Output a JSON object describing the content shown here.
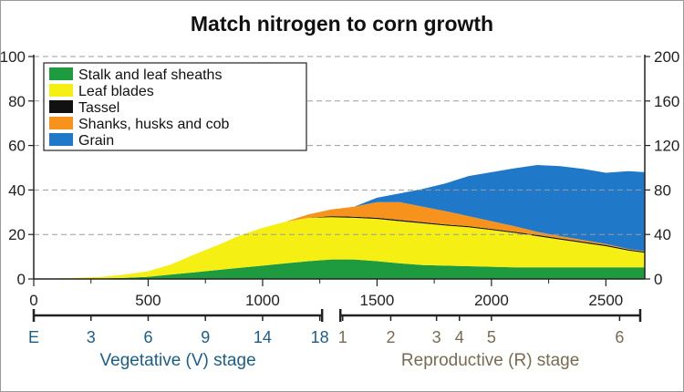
{
  "chart_data": {
    "type": "area",
    "title": "Match nitrogen to corn growth",
    "stacked": true,
    "x": [
      0,
      100,
      200,
      300,
      400,
      500,
      600,
      700,
      800,
      900,
      1000,
      1100,
      1200,
      1300,
      1400,
      1500,
      1600,
      1700,
      1800,
      1900,
      2000,
      2100,
      2200,
      2300,
      2400,
      2500,
      2600,
      2670
    ],
    "series": [
      {
        "name": "Stalk and leaf sheaths",
        "color": "#1e9a3f",
        "values": [
          0,
          0,
          0,
          0.5,
          1,
          2,
          4,
          6,
          8,
          10,
          12,
          14,
          16,
          17.5,
          17.5,
          16,
          14,
          12.5,
          12,
          11.5,
          11,
          10.5,
          10.5,
          10.5,
          10.5,
          10.5,
          10.5,
          10.5
        ]
      },
      {
        "name": "Leaf blades",
        "color": "#f5ef14",
        "values": [
          0,
          0.5,
          1,
          1.5,
          3,
          5,
          9,
          16,
          22,
          29,
          34,
          37.5,
          39,
          38,
          37.5,
          38,
          38,
          37.5,
          36,
          35,
          33,
          31,
          28,
          25,
          22,
          19,
          15,
          13
        ]
      },
      {
        "name": "Tassel",
        "color": "#111111",
        "values": [
          0,
          0,
          0,
          0,
          0,
          0,
          0,
          0,
          0,
          0,
          0,
          0,
          0,
          1,
          1,
          1,
          1,
          1,
          1,
          1,
          1,
          1,
          1,
          1,
          1,
          1,
          1,
          1
        ]
      },
      {
        "name": "Shanks, husks and cob",
        "color": "#f7931d",
        "values": [
          0,
          0,
          0,
          0,
          0,
          0,
          0,
          0,
          0,
          0,
          0,
          0,
          3,
          6,
          9,
          14,
          16,
          14,
          12,
          9,
          7,
          5,
          3,
          2,
          1.5,
          1,
          0.5,
          0.5
        ]
      },
      {
        "name": "Grain",
        "color": "#1f78c8",
        "values": [
          0,
          0,
          0,
          0,
          0,
          0,
          0,
          0,
          0,
          0,
          0,
          0,
          0,
          0,
          0,
          4,
          8,
          16,
          25,
          36,
          44,
          52,
          60,
          63,
          64,
          64,
          70,
          71
        ]
      }
    ],
    "xlim": [
      0,
      2670
    ],
    "ylim": [
      0,
      200
    ],
    "left_ticks": [
      0,
      20,
      40,
      60,
      80,
      100
    ],
    "right_ticks": [
      0,
      40,
      80,
      120,
      160,
      200
    ],
    "x_ticks": [
      0,
      500,
      1000,
      1500,
      2000,
      2500
    ],
    "left_tick_labels": [
      "0",
      "20",
      "40",
      "60",
      "80",
      "100"
    ],
    "right_tick_labels": [
      "0",
      "40",
      "80",
      "120",
      "160",
      "200"
    ],
    "x_tick_labels": [
      "0",
      "500",
      "1000",
      "1500",
      "2000",
      "2500"
    ],
    "grid": "horizontal dashed",
    "legend_position": "top-left",
    "stage_bars": [
      {
        "name": "Vegetative (V) stage",
        "color": "#1a5e8a",
        "x_start": 0,
        "x_end": 1260,
        "marks": [
          {
            "label": "E",
            "x": 0
          },
          {
            "label": "3",
            "x": 250
          },
          {
            "label": "6",
            "x": 500
          },
          {
            "label": "9",
            "x": 750
          },
          {
            "label": "14",
            "x": 1000
          },
          {
            "label": "18",
            "x": 1250
          }
        ]
      },
      {
        "name": "Reproductive (R) stage",
        "color": "#7a6a52",
        "x_start": 1340,
        "x_end": 2650,
        "marks": [
          {
            "label": "1",
            "x": 1350
          },
          {
            "label": "2",
            "x": 1560
          },
          {
            "label": "3",
            "x": 1760
          },
          {
            "label": "4",
            "x": 1860
          },
          {
            "label": "5",
            "x": 2000
          },
          {
            "label": "6",
            "x": 2560
          }
        ]
      }
    ]
  }
}
